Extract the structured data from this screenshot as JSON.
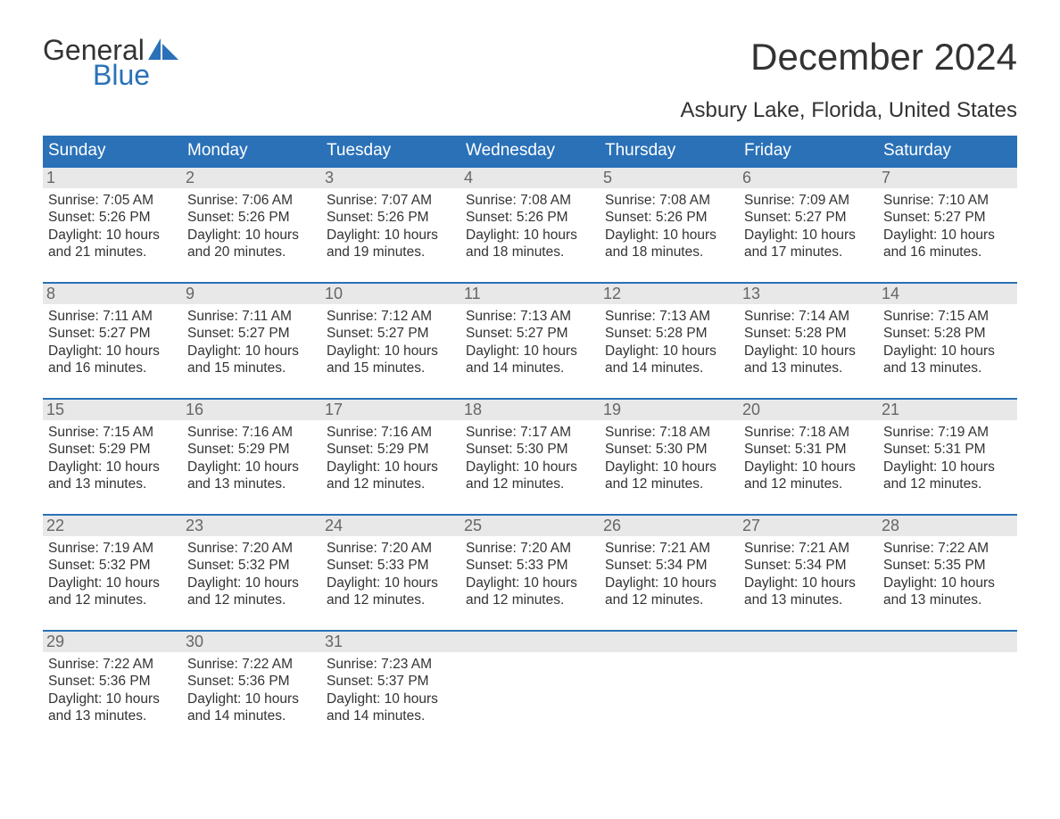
{
  "logo": {
    "line1": "General",
    "line2": "Blue",
    "sail_color": "#2a71b8"
  },
  "title": "December 2024",
  "location": "Asbury Lake, Florida, United States",
  "colors": {
    "header_bg": "#2a71b8",
    "header_text": "#ffffff",
    "daynum_bg": "#e8e8e8",
    "daynum_text": "#666666",
    "body_text": "#333333",
    "week_border": "#2a71b8",
    "page_bg": "#ffffff"
  },
  "typography": {
    "month_title_fontsize": 42,
    "location_fontsize": 24,
    "dow_fontsize": 19,
    "daynum_fontsize": 18,
    "body_fontsize": 15.5
  },
  "days_of_week": [
    "Sunday",
    "Monday",
    "Tuesday",
    "Wednesday",
    "Thursday",
    "Friday",
    "Saturday"
  ],
  "weeks": [
    [
      {
        "n": "1",
        "sunrise": "Sunrise: 7:05 AM",
        "sunset": "Sunset: 5:26 PM",
        "day1": "Daylight: 10 hours",
        "day2": "and 21 minutes."
      },
      {
        "n": "2",
        "sunrise": "Sunrise: 7:06 AM",
        "sunset": "Sunset: 5:26 PM",
        "day1": "Daylight: 10 hours",
        "day2": "and 20 minutes."
      },
      {
        "n": "3",
        "sunrise": "Sunrise: 7:07 AM",
        "sunset": "Sunset: 5:26 PM",
        "day1": "Daylight: 10 hours",
        "day2": "and 19 minutes."
      },
      {
        "n": "4",
        "sunrise": "Sunrise: 7:08 AM",
        "sunset": "Sunset: 5:26 PM",
        "day1": "Daylight: 10 hours",
        "day2": "and 18 minutes."
      },
      {
        "n": "5",
        "sunrise": "Sunrise: 7:08 AM",
        "sunset": "Sunset: 5:26 PM",
        "day1": "Daylight: 10 hours",
        "day2": "and 18 minutes."
      },
      {
        "n": "6",
        "sunrise": "Sunrise: 7:09 AM",
        "sunset": "Sunset: 5:27 PM",
        "day1": "Daylight: 10 hours",
        "day2": "and 17 minutes."
      },
      {
        "n": "7",
        "sunrise": "Sunrise: 7:10 AM",
        "sunset": "Sunset: 5:27 PM",
        "day1": "Daylight: 10 hours",
        "day2": "and 16 minutes."
      }
    ],
    [
      {
        "n": "8",
        "sunrise": "Sunrise: 7:11 AM",
        "sunset": "Sunset: 5:27 PM",
        "day1": "Daylight: 10 hours",
        "day2": "and 16 minutes."
      },
      {
        "n": "9",
        "sunrise": "Sunrise: 7:11 AM",
        "sunset": "Sunset: 5:27 PM",
        "day1": "Daylight: 10 hours",
        "day2": "and 15 minutes."
      },
      {
        "n": "10",
        "sunrise": "Sunrise: 7:12 AM",
        "sunset": "Sunset: 5:27 PM",
        "day1": "Daylight: 10 hours",
        "day2": "and 15 minutes."
      },
      {
        "n": "11",
        "sunrise": "Sunrise: 7:13 AM",
        "sunset": "Sunset: 5:27 PM",
        "day1": "Daylight: 10 hours",
        "day2": "and 14 minutes."
      },
      {
        "n": "12",
        "sunrise": "Sunrise: 7:13 AM",
        "sunset": "Sunset: 5:28 PM",
        "day1": "Daylight: 10 hours",
        "day2": "and 14 minutes."
      },
      {
        "n": "13",
        "sunrise": "Sunrise: 7:14 AM",
        "sunset": "Sunset: 5:28 PM",
        "day1": "Daylight: 10 hours",
        "day2": "and 13 minutes."
      },
      {
        "n": "14",
        "sunrise": "Sunrise: 7:15 AM",
        "sunset": "Sunset: 5:28 PM",
        "day1": "Daylight: 10 hours",
        "day2": "and 13 minutes."
      }
    ],
    [
      {
        "n": "15",
        "sunrise": "Sunrise: 7:15 AM",
        "sunset": "Sunset: 5:29 PM",
        "day1": "Daylight: 10 hours",
        "day2": "and 13 minutes."
      },
      {
        "n": "16",
        "sunrise": "Sunrise: 7:16 AM",
        "sunset": "Sunset: 5:29 PM",
        "day1": "Daylight: 10 hours",
        "day2": "and 13 minutes."
      },
      {
        "n": "17",
        "sunrise": "Sunrise: 7:16 AM",
        "sunset": "Sunset: 5:29 PM",
        "day1": "Daylight: 10 hours",
        "day2": "and 12 minutes."
      },
      {
        "n": "18",
        "sunrise": "Sunrise: 7:17 AM",
        "sunset": "Sunset: 5:30 PM",
        "day1": "Daylight: 10 hours",
        "day2": "and 12 minutes."
      },
      {
        "n": "19",
        "sunrise": "Sunrise: 7:18 AM",
        "sunset": "Sunset: 5:30 PM",
        "day1": "Daylight: 10 hours",
        "day2": "and 12 minutes."
      },
      {
        "n": "20",
        "sunrise": "Sunrise: 7:18 AM",
        "sunset": "Sunset: 5:31 PM",
        "day1": "Daylight: 10 hours",
        "day2": "and 12 minutes."
      },
      {
        "n": "21",
        "sunrise": "Sunrise: 7:19 AM",
        "sunset": "Sunset: 5:31 PM",
        "day1": "Daylight: 10 hours",
        "day2": "and 12 minutes."
      }
    ],
    [
      {
        "n": "22",
        "sunrise": "Sunrise: 7:19 AM",
        "sunset": "Sunset: 5:32 PM",
        "day1": "Daylight: 10 hours",
        "day2": "and 12 minutes."
      },
      {
        "n": "23",
        "sunrise": "Sunrise: 7:20 AM",
        "sunset": "Sunset: 5:32 PM",
        "day1": "Daylight: 10 hours",
        "day2": "and 12 minutes."
      },
      {
        "n": "24",
        "sunrise": "Sunrise: 7:20 AM",
        "sunset": "Sunset: 5:33 PM",
        "day1": "Daylight: 10 hours",
        "day2": "and 12 minutes."
      },
      {
        "n": "25",
        "sunrise": "Sunrise: 7:20 AM",
        "sunset": "Sunset: 5:33 PM",
        "day1": "Daylight: 10 hours",
        "day2": "and 12 minutes."
      },
      {
        "n": "26",
        "sunrise": "Sunrise: 7:21 AM",
        "sunset": "Sunset: 5:34 PM",
        "day1": "Daylight: 10 hours",
        "day2": "and 12 minutes."
      },
      {
        "n": "27",
        "sunrise": "Sunrise: 7:21 AM",
        "sunset": "Sunset: 5:34 PM",
        "day1": "Daylight: 10 hours",
        "day2": "and 13 minutes."
      },
      {
        "n": "28",
        "sunrise": "Sunrise: 7:22 AM",
        "sunset": "Sunset: 5:35 PM",
        "day1": "Daylight: 10 hours",
        "day2": "and 13 minutes."
      }
    ],
    [
      {
        "n": "29",
        "sunrise": "Sunrise: 7:22 AM",
        "sunset": "Sunset: 5:36 PM",
        "day1": "Daylight: 10 hours",
        "day2": "and 13 minutes."
      },
      {
        "n": "30",
        "sunrise": "Sunrise: 7:22 AM",
        "sunset": "Sunset: 5:36 PM",
        "day1": "Daylight: 10 hours",
        "day2": "and 14 minutes."
      },
      {
        "n": "31",
        "sunrise": "Sunrise: 7:23 AM",
        "sunset": "Sunset: 5:37 PM",
        "day1": "Daylight: 10 hours",
        "day2": "and 14 minutes."
      },
      null,
      null,
      null,
      null
    ]
  ]
}
